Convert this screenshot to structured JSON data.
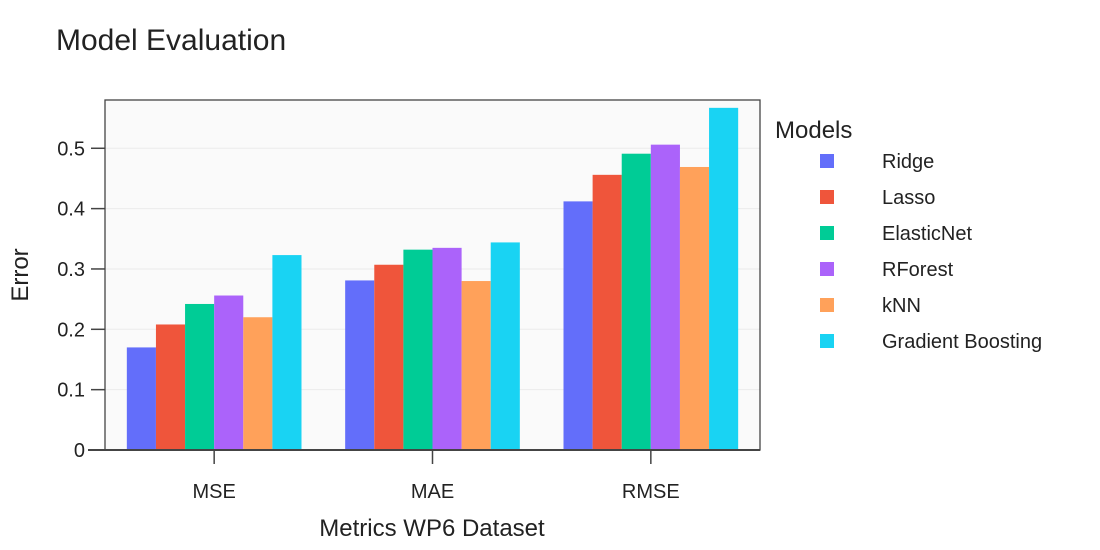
{
  "chart_data": {
    "type": "bar",
    "title": "Model Evaluation",
    "xlabel": "Metrics WP6 Dataset",
    "ylabel": "Error",
    "ylim": [
      0,
      0.58
    ],
    "yticks": [
      0,
      0.1,
      0.2,
      0.3,
      0.4,
      0.5
    ],
    "ytick_labels": [
      "0",
      "0.1",
      "0.2",
      "0.3",
      "0.4",
      "0.5"
    ],
    "categories": [
      "MSE",
      "MAE",
      "RMSE"
    ],
    "grid": true,
    "legend": {
      "title": "Models",
      "position": "right"
    },
    "series": [
      {
        "name": "Ridge",
        "color": "#636efa",
        "values": [
          0.17,
          0.281,
          0.412
        ]
      },
      {
        "name": "Lasso",
        "color": "#ef553b",
        "values": [
          0.208,
          0.307,
          0.456
        ]
      },
      {
        "name": "ElasticNet",
        "color": "#00cc96",
        "values": [
          0.242,
          0.332,
          0.491
        ]
      },
      {
        "name": "RForest",
        "color": "#ab63fa",
        "values": [
          0.256,
          0.335,
          0.506
        ]
      },
      {
        "name": "kNN",
        "color": "#ffa15a",
        "values": [
          0.22,
          0.28,
          0.469
        ]
      },
      {
        "name": "Gradient Boosting",
        "color": "#19d3f3",
        "values": [
          0.323,
          0.344,
          0.567
        ]
      }
    ]
  }
}
